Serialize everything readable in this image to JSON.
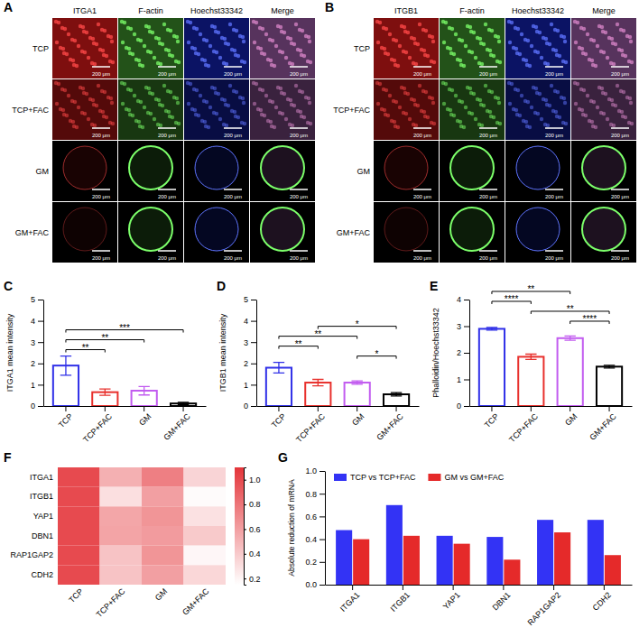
{
  "image_panels": [
    {
      "panel": "A",
      "columns": [
        "ITGA1",
        "F-actin",
        "Hoechst33342",
        "Merge"
      ],
      "rows": [
        "TCP",
        "TCP+FAC",
        "GM",
        "GM+FAC"
      ],
      "scale_bar": "200 μm"
    },
    {
      "panel": "B",
      "columns": [
        "ITGB1",
        "F-actin",
        "Hoechst33342",
        "Merge"
      ],
      "rows": [
        "TCP",
        "TCP+FAC",
        "GM",
        "GM+FAC"
      ],
      "scale_bar": "200 μm"
    }
  ],
  "chart_data": [
    {
      "panel": "C",
      "type": "bar",
      "y_label": "ITGA1 mean intensity",
      "categories": [
        "TCP",
        "TCP+FAC",
        "GM",
        "GM+FAC"
      ],
      "values": [
        1.9,
        0.65,
        0.72,
        0.12
      ],
      "errors": [
        0.45,
        0.15,
        0.2,
        0.05
      ],
      "colors": [
        "#3030e8",
        "#e8302c",
        "#c25cf0",
        "#000000"
      ],
      "ylim": [
        0,
        5
      ],
      "yticks": [
        0,
        1,
        2,
        3,
        4,
        5
      ],
      "annotations": [
        {
          "from": "TCP",
          "to": "TCP+FAC",
          "label": "**"
        },
        {
          "from": "TCP",
          "to": "GM",
          "label": "**"
        },
        {
          "from": "TCP",
          "to": "GM+FAC",
          "label": "***"
        }
      ]
    },
    {
      "panel": "D",
      "type": "bar",
      "y_label": "ITGB1 mean intensity",
      "categories": [
        "TCP",
        "TCP+FAC",
        "GM",
        "GM+FAC"
      ],
      "values": [
        1.8,
        1.1,
        1.1,
        0.55
      ],
      "errors": [
        0.25,
        0.15,
        0.08,
        0.08
      ],
      "colors": [
        "#3030e8",
        "#e8302c",
        "#c25cf0",
        "#000000"
      ],
      "ylim": [
        0,
        5
      ],
      "yticks": [
        0,
        1,
        2,
        3,
        4,
        5
      ],
      "annotations": [
        {
          "from": "GM",
          "to": "GM+FAC",
          "label": "*"
        },
        {
          "from": "TCP",
          "to": "TCP+FAC",
          "label": "**"
        },
        {
          "from": "TCP",
          "to": "GM",
          "label": "**"
        },
        {
          "from": "TCP+FAC",
          "to": "GM+FAC",
          "label": "*"
        }
      ]
    },
    {
      "panel": "E",
      "type": "bar",
      "y_label": "Phalloidin/Hoechst33342",
      "categories": [
        "TCP",
        "TCP+FAC",
        "GM",
        "GM+FAC"
      ],
      "values": [
        2.9,
        1.85,
        2.55,
        1.48
      ],
      "errors": [
        0.05,
        0.1,
        0.08,
        0.05
      ],
      "colors": [
        "#3030e8",
        "#e8302c",
        "#c25cf0",
        "#000000"
      ],
      "ylim": [
        0,
        4
      ],
      "yticks": [
        0,
        1,
        2,
        3,
        4
      ],
      "annotations": [
        {
          "from": "GM",
          "to": "GM+FAC",
          "label": "****"
        },
        {
          "from": "TCP+FAC",
          "to": "GM+FAC",
          "label": "**"
        },
        {
          "from": "TCP",
          "to": "TCP+FAC",
          "label": "****"
        },
        {
          "from": "TCP",
          "to": "GM",
          "label": "**"
        }
      ]
    },
    {
      "panel": "F",
      "type": "heatmap",
      "columns": [
        "TCP",
        "TCP+FAC",
        "GM",
        "GM+FAC"
      ],
      "rows": [
        "ITGA1",
        "ITGB1",
        "YAP1",
        "DBN1",
        "RAP1GAP2",
        "CDH2"
      ],
      "cells": [
        [
          1,
          0.52,
          0.75,
          0.35
        ],
        [
          1,
          0.3,
          0.6,
          0.17
        ],
        [
          1,
          0.57,
          0.65,
          0.29
        ],
        [
          1,
          0.58,
          0.62,
          0.4
        ],
        [
          1,
          0.43,
          0.65,
          0.19
        ],
        [
          1,
          0.43,
          0.6,
          0.34
        ]
      ],
      "color": "#e4353a",
      "colorbar": {
        "range": [
          0.15,
          1.1
        ],
        "ticks": [
          0.2,
          0.4,
          0.6,
          0.8,
          {
            "value": 1,
            "label": "1.0"
          }
        ]
      }
    },
    {
      "panel": "G",
      "type": "bar",
      "y_label": "Absolute reduction of mRNA",
      "categories": [
        "ITGA1",
        "ITGB1",
        "YAP1",
        "DBN1",
        "RAP1GAP2",
        "CDH2"
      ],
      "series": [
        {
          "name": "TCP vs TCP+FAC",
          "color": "#3333f5",
          "values": [
            0.48,
            0.7,
            0.43,
            0.42,
            0.57,
            0.57
          ]
        },
        {
          "name": "GM vs GM+FAC",
          "color": "#e52a2a",
          "values": [
            0.4,
            0.43,
            0.36,
            0.22,
            0.46,
            0.26
          ]
        }
      ],
      "ylim": [
        0,
        1
      ],
      "yticks": [
        {
          "value": 0,
          "label": "0.0"
        },
        0.2,
        0.4,
        0.6,
        0.8,
        {
          "value": 1,
          "label": "1.0"
        }
      ],
      "legend": "upper left"
    }
  ]
}
